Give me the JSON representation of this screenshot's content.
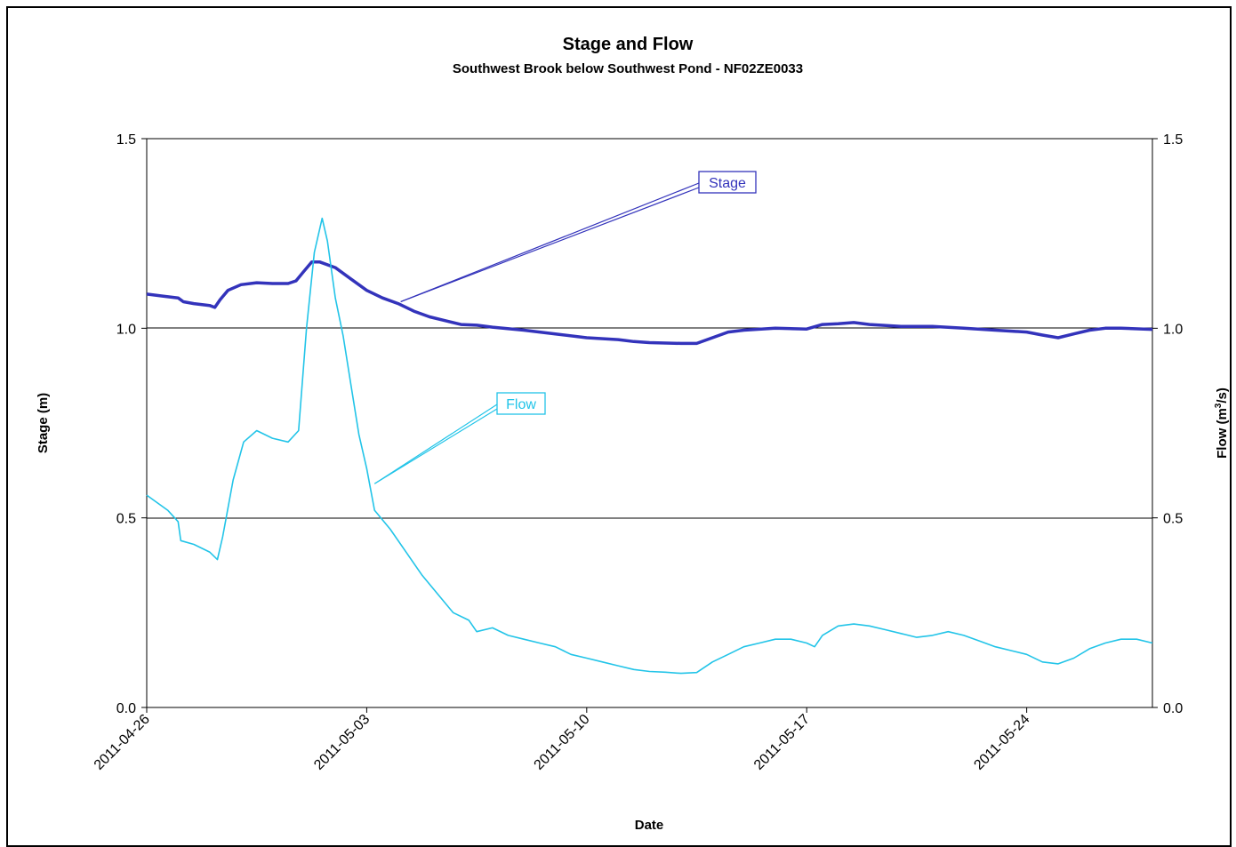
{
  "chart_data": {
    "type": "line",
    "title": "Stage and Flow",
    "subtitle": "Southwest Brook below Southwest Pond - NF02ZE0033",
    "xlabel": "Date",
    "ylabel_left": "Stage (m)",
    "ylabel_right": {
      "text": "Flow (m",
      "sup": "3",
      "tail": "/s)"
    },
    "x_ticks": [
      "2011-04-26",
      "2011-05-03",
      "2011-05-10",
      "2011-05-17",
      "2011-05-24"
    ],
    "x_range": [
      "2011-04-26",
      "2011-05-28"
    ],
    "y_left_range": [
      0,
      1.5
    ],
    "y_right_range": [
      0,
      1.5
    ],
    "y_ticks": [
      "0.0",
      "0.5",
      "1.0",
      "1.5"
    ],
    "y_tick_values": [
      0,
      0.5,
      1.0,
      1.5
    ],
    "grid": "horizontal gridlines at 1.0 and 0.5",
    "series": [
      {
        "name": "Stage",
        "axis": "left",
        "color": "#3333bb",
        "points": [
          [
            "2011-04-26 00:00",
            1.09
          ],
          [
            "2011-04-26 12:00",
            1.085
          ],
          [
            "2011-04-27 00:00",
            1.08
          ],
          [
            "2011-04-27 04:00",
            1.07
          ],
          [
            "2011-04-27 12:00",
            1.065
          ],
          [
            "2011-04-28 00:00",
            1.06
          ],
          [
            "2011-04-28 04:00",
            1.055
          ],
          [
            "2011-04-28 08:00",
            1.075
          ],
          [
            "2011-04-28 14:00",
            1.1
          ],
          [
            "2011-04-29 00:00",
            1.115
          ],
          [
            "2011-04-29 12:00",
            1.12
          ],
          [
            "2011-04-30 00:00",
            1.118
          ],
          [
            "2011-04-30 12:00",
            1.118
          ],
          [
            "2011-04-30 18:00",
            1.125
          ],
          [
            "2011-05-01 00:00",
            1.15
          ],
          [
            "2011-05-01 06:00",
            1.175
          ],
          [
            "2011-05-01 12:00",
            1.175
          ],
          [
            "2011-05-02 00:00",
            1.16
          ],
          [
            "2011-05-02 12:00",
            1.13
          ],
          [
            "2011-05-03 00:00",
            1.1
          ],
          [
            "2011-05-03 12:00",
            1.08
          ],
          [
            "2011-05-04 00:00",
            1.065
          ],
          [
            "2011-05-04 12:00",
            1.045
          ],
          [
            "2011-05-05 00:00",
            1.03
          ],
          [
            "2011-05-05 12:00",
            1.02
          ],
          [
            "2011-05-06 00:00",
            1.01
          ],
          [
            "2011-05-06 12:00",
            1.008
          ],
          [
            "2011-05-07 00:00",
            1.003
          ],
          [
            "2011-05-08 00:00",
            0.995
          ],
          [
            "2011-05-09 00:00",
            0.985
          ],
          [
            "2011-05-10 00:00",
            0.975
          ],
          [
            "2011-05-11 00:00",
            0.97
          ],
          [
            "2011-05-11 12:00",
            0.965
          ],
          [
            "2011-05-12 00:00",
            0.962
          ],
          [
            "2011-05-13 00:00",
            0.96
          ],
          [
            "2011-05-13 12:00",
            0.96
          ],
          [
            "2011-05-14 00:00",
            0.975
          ],
          [
            "2011-05-14 12:00",
            0.99
          ],
          [
            "2011-05-15 00:00",
            0.995
          ],
          [
            "2011-05-16 00:00",
            1.0
          ],
          [
            "2011-05-17 00:00",
            0.998
          ],
          [
            "2011-05-17 12:00",
            1.01
          ],
          [
            "2011-05-18 00:00",
            1.012
          ],
          [
            "2011-05-18 12:00",
            1.015
          ],
          [
            "2011-05-19 00:00",
            1.01
          ],
          [
            "2011-05-20 00:00",
            1.005
          ],
          [
            "2011-05-21 00:00",
            1.005
          ],
          [
            "2011-05-22 00:00",
            1.0
          ],
          [
            "2011-05-23 00:00",
            0.995
          ],
          [
            "2011-05-24 00:00",
            0.99
          ],
          [
            "2011-05-24 12:00",
            0.982
          ],
          [
            "2011-05-25 00:00",
            0.975
          ],
          [
            "2011-05-25 12:00",
            0.985
          ],
          [
            "2011-05-26 00:00",
            0.995
          ],
          [
            "2011-05-26 12:00",
            1.0
          ],
          [
            "2011-05-27 00:00",
            1.0
          ],
          [
            "2011-05-28 00:00",
            0.997
          ]
        ]
      },
      {
        "name": "Flow",
        "axis": "right",
        "color": "#22c4e8",
        "points": [
          [
            "2011-04-26 00:00",
            0.56
          ],
          [
            "2011-04-26 08:00",
            0.54
          ],
          [
            "2011-04-26 16:00",
            0.52
          ],
          [
            "2011-04-27 00:00",
            0.49
          ],
          [
            "2011-04-27 02:00",
            0.44
          ],
          [
            "2011-04-27 12:00",
            0.43
          ],
          [
            "2011-04-28 00:00",
            0.41
          ],
          [
            "2011-04-28 06:00",
            0.39
          ],
          [
            "2011-04-28 10:00",
            0.45
          ],
          [
            "2011-04-28 18:00",
            0.6
          ],
          [
            "2011-04-29 02:00",
            0.7
          ],
          [
            "2011-04-29 12:00",
            0.73
          ],
          [
            "2011-04-30 00:00",
            0.71
          ],
          [
            "2011-04-30 12:00",
            0.7
          ],
          [
            "2011-04-30 20:00",
            0.73
          ],
          [
            "2011-05-01 02:00",
            1.0
          ],
          [
            "2011-05-01 08:00",
            1.2
          ],
          [
            "2011-05-01 14:00",
            1.29
          ],
          [
            "2011-05-01 18:00",
            1.23
          ],
          [
            "2011-05-02 00:00",
            1.08
          ],
          [
            "2011-05-02 06:00",
            0.98
          ],
          [
            "2011-05-02 12:00",
            0.85
          ],
          [
            "2011-05-02 18:00",
            0.72
          ],
          [
            "2011-05-03 00:00",
            0.63
          ],
          [
            "2011-05-03 06:00",
            0.52
          ],
          [
            "2011-05-03 18:00",
            0.47
          ],
          [
            "2011-05-04 06:00",
            0.41
          ],
          [
            "2011-05-04 18:00",
            0.35
          ],
          [
            "2011-05-05 06:00",
            0.3
          ],
          [
            "2011-05-05 18:00",
            0.25
          ],
          [
            "2011-05-06 06:00",
            0.23
          ],
          [
            "2011-05-06 12:00",
            0.2
          ],
          [
            "2011-05-07 00:00",
            0.21
          ],
          [
            "2011-05-07 12:00",
            0.19
          ],
          [
            "2011-05-08 00:00",
            0.18
          ],
          [
            "2011-05-08 12:00",
            0.17
          ],
          [
            "2011-05-09 00:00",
            0.16
          ],
          [
            "2011-05-09 12:00",
            0.14
          ],
          [
            "2011-05-10 00:00",
            0.13
          ],
          [
            "2011-05-10 12:00",
            0.12
          ],
          [
            "2011-05-11 00:00",
            0.11
          ],
          [
            "2011-05-11 12:00",
            0.1
          ],
          [
            "2011-05-12 00:00",
            0.095
          ],
          [
            "2011-05-12 12:00",
            0.093
          ],
          [
            "2011-05-13 00:00",
            0.09
          ],
          [
            "2011-05-13 12:00",
            0.092
          ],
          [
            "2011-05-14 00:00",
            0.12
          ],
          [
            "2011-05-14 12:00",
            0.14
          ],
          [
            "2011-05-15 00:00",
            0.16
          ],
          [
            "2011-05-15 12:00",
            0.17
          ],
          [
            "2011-05-16 00:00",
            0.18
          ],
          [
            "2011-05-16 12:00",
            0.18
          ],
          [
            "2011-05-17 00:00",
            0.17
          ],
          [
            "2011-05-17 06:00",
            0.16
          ],
          [
            "2011-05-17 12:00",
            0.19
          ],
          [
            "2011-05-18 00:00",
            0.215
          ],
          [
            "2011-05-18 12:00",
            0.22
          ],
          [
            "2011-05-19 00:00",
            0.215
          ],
          [
            "2011-05-19 12:00",
            0.205
          ],
          [
            "2011-05-20 00:00",
            0.195
          ],
          [
            "2011-05-20 12:00",
            0.185
          ],
          [
            "2011-05-21 00:00",
            0.19
          ],
          [
            "2011-05-21 12:00",
            0.2
          ],
          [
            "2011-05-22 00:00",
            0.19
          ],
          [
            "2011-05-22 12:00",
            0.175
          ],
          [
            "2011-05-23 00:00",
            0.16
          ],
          [
            "2011-05-23 12:00",
            0.15
          ],
          [
            "2011-05-24 00:00",
            0.14
          ],
          [
            "2011-05-24 12:00",
            0.12
          ],
          [
            "2011-05-25 00:00",
            0.115
          ],
          [
            "2011-05-25 12:00",
            0.13
          ],
          [
            "2011-05-26 00:00",
            0.155
          ],
          [
            "2011-05-26 12:00",
            0.17
          ],
          [
            "2011-05-27 00:00",
            0.18
          ],
          [
            "2011-05-27 12:00",
            0.18
          ],
          [
            "2011-05-28 00:00",
            0.17
          ]
        ]
      }
    ],
    "annotations": [
      {
        "label": "Stage",
        "series": "Stage",
        "color": "#3333bb",
        "points_to": [
          "2011-05-04 02:00",
          1.07
        ]
      },
      {
        "label": "Flow",
        "series": "Flow",
        "color": "#22c4e8",
        "points_to": [
          "2011-05-03 06:00",
          0.59
        ]
      }
    ]
  }
}
